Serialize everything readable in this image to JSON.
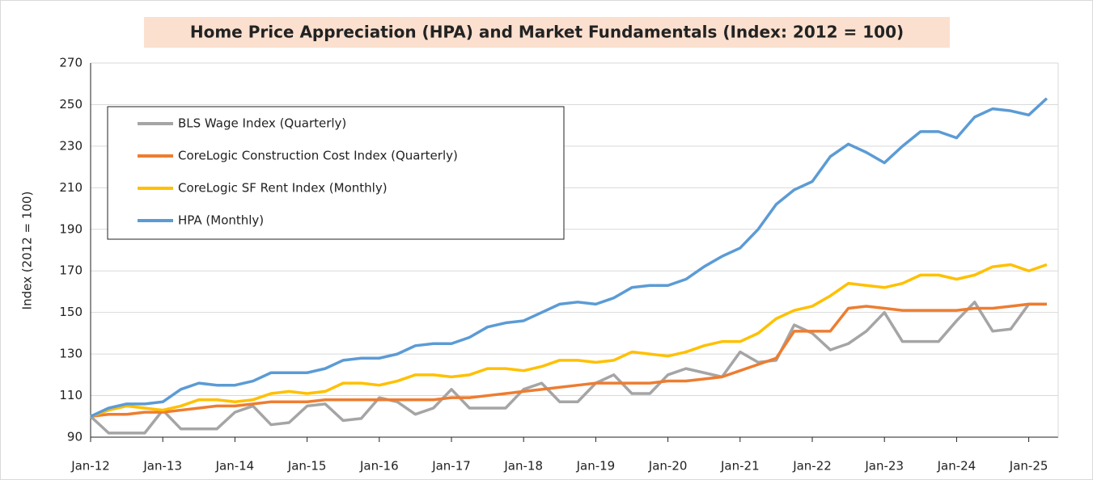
{
  "chart_data": {
    "type": "line",
    "title": "Home Price Appreciation (HPA) and Market Fundamentals (Index: 2012 = 100)",
    "y_label": "Index (2012 = 100)",
    "categories": [
      "Jan-12",
      null,
      null,
      null,
      "Jan-13",
      null,
      null,
      null,
      "Jan-14",
      null,
      null,
      null,
      "Jan-15",
      null,
      null,
      null,
      "Jan-16",
      null,
      null,
      null,
      "Jan-17",
      null,
      null,
      null,
      "Jan-18",
      null,
      null,
      null,
      "Jan-19",
      null,
      null,
      null,
      "Jan-20",
      null,
      null,
      null,
      "Jan-21",
      null,
      null,
      null,
      "Jan-22",
      null,
      null,
      null,
      "Jan-23",
      null,
      null,
      null,
      "Jan-24",
      null,
      null,
      null,
      "Jan-25",
      null
    ],
    "series": [
      {
        "name": "BLS Wage Index (Quarterly)",
        "color": "#a5a5a5",
        "values": [
          100,
          92,
          92,
          92,
          103,
          94,
          94,
          94,
          102,
          105,
          96,
          97,
          105,
          106,
          98,
          99,
          109,
          107,
          101,
          104,
          113,
          104,
          104,
          104,
          113,
          116,
          107,
          107,
          116,
          120,
          111,
          111,
          120,
          123,
          121,
          119,
          131,
          126,
          127,
          144,
          140,
          132,
          135,
          141,
          150,
          136,
          136,
          136,
          146,
          155,
          141,
          142,
          154,
          154
        ]
      },
      {
        "name": "CoreLogic Construction Cost Index (Quarterly)",
        "color": "#ed7d31",
        "values": [
          100,
          101,
          101,
          102,
          102,
          103,
          104,
          105,
          105,
          106,
          107,
          107,
          107,
          108,
          108,
          108,
          108,
          108,
          108,
          108,
          109,
          109,
          110,
          111,
          112,
          113,
          114,
          115,
          116,
          116,
          116,
          116,
          117,
          117,
          118,
          119,
          122,
          125,
          128,
          141,
          141,
          141,
          152,
          153,
          152,
          151,
          151,
          151,
          151,
          152,
          152,
          153,
          154,
          154
        ]
      },
      {
        "name": "CoreLogic SF Rent Index (Monthly)",
        "color": "#ffc000",
        "values": [
          100,
          103,
          105,
          104,
          103,
          105,
          108,
          108,
          107,
          108,
          111,
          112,
          111,
          112,
          116,
          116,
          115,
          117,
          120,
          120,
          119,
          120,
          123,
          123,
          122,
          124,
          127,
          127,
          126,
          127,
          131,
          130,
          129,
          131,
          134,
          136,
          136,
          140,
          147,
          151,
          153,
          158,
          164,
          163,
          162,
          164,
          168,
          168,
          166,
          168,
          172,
          173,
          170,
          173
        ]
      },
      {
        "name": "HPA (Monthly)",
        "color": "#5b9bd5",
        "values": [
          100,
          104,
          106,
          106,
          107,
          113,
          116,
          115,
          115,
          117,
          121,
          121,
          121,
          123,
          127,
          128,
          128,
          130,
          134,
          135,
          135,
          138,
          143,
          145,
          146,
          150,
          154,
          155,
          154,
          157,
          162,
          163,
          163,
          166,
          172,
          177,
          181,
          190,
          202,
          209,
          213,
          225,
          231,
          227,
          222,
          230,
          237,
          237,
          234,
          244,
          248,
          247,
          245,
          253
        ]
      }
    ],
    "ylim": [
      90,
      270
    ],
    "yticks": [
      90,
      110,
      130,
      150,
      170,
      190,
      210,
      230,
      250,
      270
    ],
    "grid": true
  }
}
